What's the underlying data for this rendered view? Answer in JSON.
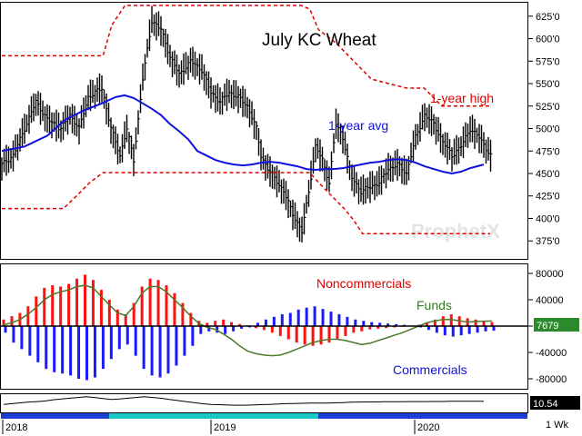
{
  "chart_data": [
    {
      "type": "ohlc",
      "title": "July KC Wheat",
      "ylim": [
        355,
        640
      ],
      "y_ticks": [
        375,
        400,
        425,
        450,
        475,
        500,
        525,
        550,
        575,
        600,
        625
      ],
      "y_tick_labels": [
        "375'0",
        "400'0",
        "425'0",
        "450'0",
        "475'0",
        "500'0",
        "525'0",
        "550'0",
        "575'0",
        "600'0",
        "625'0"
      ],
      "annotations": [
        "1-year high",
        "1-year avg"
      ],
      "watermark": "ProphetX",
      "price_path": [
        [
          0,
          460
        ],
        [
          5,
          470
        ],
        [
          10,
          500
        ],
        [
          15,
          530
        ],
        [
          20,
          510
        ],
        [
          26,
          500
        ],
        [
          30,
          515
        ],
        [
          34,
          500
        ],
        [
          38,
          535
        ],
        [
          44,
          545
        ],
        [
          48,
          500
        ],
        [
          52,
          470
        ],
        [
          55,
          500
        ],
        [
          58,
          465
        ],
        [
          62,
          555
        ],
        [
          66,
          620
        ],
        [
          70,
          610
        ],
        [
          74,
          580
        ],
        [
          78,
          560
        ],
        [
          83,
          575
        ],
        [
          88,
          565
        ],
        [
          92,
          540
        ],
        [
          96,
          530
        ],
        [
          100,
          540
        ],
        [
          104,
          535
        ],
        [
          108,
          525
        ],
        [
          112,
          500
        ],
        [
          114,
          470
        ],
        [
          117,
          455
        ],
        [
          120,
          445
        ],
        [
          124,
          430
        ],
        [
          128,
          405
        ],
        [
          132,
          385
        ],
        [
          135,
          430
        ],
        [
          138,
          480
        ],
        [
          141,
          465
        ],
        [
          144,
          440
        ],
        [
          147,
          505
        ],
        [
          150,
          490
        ],
        [
          154,
          445
        ],
        [
          158,
          430
        ],
        [
          162,
          435
        ],
        [
          166,
          440
        ],
        [
          170,
          455
        ],
        [
          174,
          460
        ],
        [
          178,
          450
        ],
        [
          182,
          490
        ],
        [
          186,
          515
        ],
        [
          190,
          505
        ],
        [
          194,
          485
        ],
        [
          198,
          470
        ],
        [
          202,
          480
        ],
        [
          206,
          500
        ],
        [
          210,
          490
        ],
        [
          215,
          470
        ]
      ],
      "high_path": [
        [
          0,
          581
        ],
        [
          22,
          581
        ],
        [
          23,
          581
        ],
        [
          25,
          615
        ],
        [
          28,
          637
        ],
        [
          68,
          637
        ],
        [
          70,
          633
        ],
        [
          72,
          610
        ],
        [
          76,
          595
        ],
        [
          80,
          575
        ],
        [
          84,
          555
        ],
        [
          88,
          550
        ],
        [
          92,
          545
        ],
        [
          96,
          545
        ],
        [
          100,
          525
        ],
        [
          111,
          525
        ]
      ],
      "low_path": [
        [
          0,
          411
        ],
        [
          14,
          411
        ],
        [
          17,
          425
        ],
        [
          20,
          440
        ],
        [
          23,
          451
        ],
        [
          70,
          451
        ],
        [
          72,
          440
        ],
        [
          75,
          425
        ],
        [
          78,
          410
        ],
        [
          80,
          398
        ],
        [
          82,
          383
        ],
        [
          111,
          383
        ]
      ],
      "avg_path": [
        [
          0,
          475
        ],
        [
          10,
          480
        ],
        [
          20,
          492
        ],
        [
          28,
          510
        ],
        [
          36,
          520
        ],
        [
          44,
          528
        ],
        [
          50,
          535
        ],
        [
          54,
          537
        ],
        [
          58,
          534
        ],
        [
          62,
          528
        ],
        [
          66,
          522
        ],
        [
          70,
          515
        ],
        [
          74,
          505
        ],
        [
          78,
          497
        ],
        [
          82,
          488
        ],
        [
          86,
          475
        ],
        [
          90,
          470
        ],
        [
          94,
          465
        ],
        [
          98,
          462
        ],
        [
          102,
          460
        ],
        [
          106,
          459
        ],
        [
          110,
          460
        ],
        [
          114,
          462
        ],
        [
          118,
          463
        ],
        [
          122,
          462
        ],
        [
          126,
          460
        ],
        [
          130,
          458
        ],
        [
          134,
          455
        ],
        [
          138,
          454
        ],
        [
          142,
          455
        ],
        [
          146,
          455
        ],
        [
          150,
          456
        ],
        [
          154,
          458
        ],
        [
          158,
          460
        ],
        [
          162,
          462
        ],
        [
          166,
          463
        ],
        [
          170,
          465
        ],
        [
          174,
          466
        ],
        [
          178,
          465
        ],
        [
          182,
          462
        ],
        [
          186,
          458
        ],
        [
          190,
          455
        ],
        [
          194,
          452
        ],
        [
          198,
          450
        ],
        [
          202,
          452
        ],
        [
          206,
          456
        ],
        [
          212,
          460
        ]
      ]
    },
    {
      "type": "bar",
      "ylim": [
        -100000,
        100000
      ],
      "y_ticks": [
        80000,
        40000,
        0,
        -40000,
        -80000
      ],
      "y_tick_labels": [
        "80000",
        "40000",
        "0",
        "-40000",
        "-80000"
      ],
      "last_value_label": "7679",
      "annotations": [
        "Noncommercials",
        "Funds",
        "Commercials"
      ],
      "noncommercials": [
        10000,
        15000,
        20000,
        30000,
        45000,
        58000,
        62000,
        60000,
        64000,
        72000,
        78000,
        70000,
        55000,
        40000,
        25000,
        18000,
        35000,
        60000,
        72000,
        70000,
        62000,
        50000,
        35000,
        20000,
        8000,
        5000,
        8000,
        10000,
        6000,
        3000,
        1000,
        -3000,
        -6000,
        -10000,
        -15000,
        -20000,
        -25000,
        -28000,
        -30000,
        -28000,
        -25000,
        -20000,
        -15000,
        -10000,
        -8000,
        -5000,
        -4000,
        -3000,
        -2000,
        -1000,
        0,
        2000,
        5000,
        10000,
        15000,
        18000,
        15000,
        12000,
        10000,
        8000,
        6000
      ],
      "commercials": [
        -10000,
        -25000,
        -35000,
        -45000,
        -55000,
        -65000,
        -70000,
        -72000,
        -75000,
        -80000,
        -82000,
        -78000,
        -65000,
        -50000,
        -35000,
        -28000,
        -45000,
        -65000,
        -75000,
        -78000,
        -72000,
        -60000,
        -45000,
        -30000,
        -12000,
        -8000,
        -10000,
        -12000,
        -8000,
        -4000,
        -2000,
        5000,
        10000,
        14000,
        18000,
        20000,
        25000,
        28000,
        30000,
        26000,
        22000,
        18000,
        14000,
        10000,
        8000,
        6000,
        5000,
        4000,
        3000,
        2000,
        1000,
        -2000,
        -6000,
        -10000,
        -14000,
        -16000,
        -14000,
        -12000,
        -10000,
        -8000,
        -7000
      ],
      "funds": [
        2000,
        5000,
        10000,
        18000,
        28000,
        40000,
        48000,
        52000,
        55000,
        60000,
        62000,
        58000,
        45000,
        32000,
        20000,
        16000,
        30000,
        50000,
        60000,
        60000,
        52000,
        40000,
        28000,
        15000,
        4000,
        -2000,
        -5000,
        -12000,
        -20000,
        -30000,
        -38000,
        -42000,
        -44000,
        -45000,
        -44000,
        -40000,
        -35000,
        -30000,
        -25000,
        -22000,
        -20000,
        -20000,
        -22000,
        -25000,
        -28000,
        -26000,
        -22000,
        -18000,
        -14000,
        -10000,
        -5000,
        0,
        5000,
        8000,
        10000,
        10000,
        8000,
        6000,
        7000,
        7500,
        7679
      ]
    },
    {
      "type": "line",
      "last_value_label": "10.54",
      "values": [
        0.4,
        0.45,
        0.5,
        0.55,
        0.58,
        0.62,
        0.7,
        0.75,
        0.8,
        0.85,
        0.9,
        0.85,
        0.78,
        0.72,
        0.75,
        0.8,
        0.85,
        0.9,
        0.85,
        0.8,
        0.72,
        0.65,
        0.58,
        0.52,
        0.45,
        0.4,
        0.38,
        0.36,
        0.35,
        0.35,
        0.36,
        0.38,
        0.4,
        0.42,
        0.45,
        0.46,
        0.47,
        0.48,
        0.48,
        0.49,
        0.5,
        0.52,
        0.54,
        0.55,
        0.56,
        0.56,
        0.57,
        0.57,
        0.57,
        0.58,
        0.58,
        0.58,
        0.59,
        0.59,
        0.6,
        0.6,
        0.6,
        0.6,
        0.6
      ]
    }
  ],
  "time_axis": {
    "year_labels": [
      "2018",
      "2019",
      "2020"
    ],
    "interval_label": "1 Wk"
  }
}
